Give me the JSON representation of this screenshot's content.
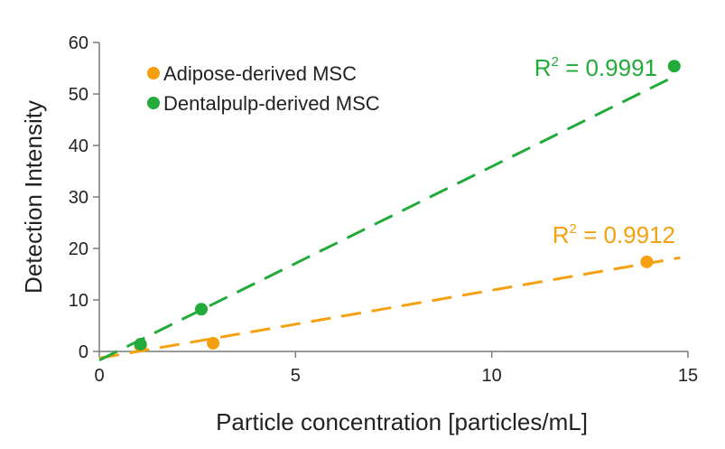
{
  "chart_data": {
    "type": "scatter",
    "title": "",
    "xlabel": "Particle concentration [particles/mL]",
    "ylabel": "Detection Intensity",
    "xlim": [
      0,
      15
    ],
    "ylim": [
      0,
      60
    ],
    "x_ticks": [
      0,
      5,
      10,
      15
    ],
    "y_ticks": [
      0,
      10,
      20,
      30,
      40,
      50,
      60
    ],
    "x_tick_labels": [
      "0",
      "5",
      "10",
      "15"
    ],
    "y_tick_labels": [
      "0",
      "10",
      "20",
      "30",
      "40",
      "50",
      "60"
    ],
    "grid": false,
    "legend_position": "top-left",
    "series": [
      {
        "name": "Adipose-derived MSC",
        "color": "#f5a00f",
        "points": [
          {
            "x": 1.05,
            "y": 1.0
          },
          {
            "x": 2.9,
            "y": 1.6
          },
          {
            "x": 13.95,
            "y": 17.4
          }
        ],
        "trendline": {
          "style": "dashed",
          "x0": 0,
          "y0": -1.3,
          "x1": 14.8,
          "y1": 18.2
        },
        "r2": {
          "prefix": "R",
          "sup": "2",
          "value": " = 0.9912"
        }
      },
      {
        "name": "Dentalpulp-derived MSC",
        "color": "#22aa3a",
        "points": [
          {
            "x": 1.05,
            "y": 1.4
          },
          {
            "x": 2.6,
            "y": 8.2
          },
          {
            "x": 14.65,
            "y": 55.4
          }
        ],
        "trendline": {
          "style": "dashed",
          "x0": 0,
          "y0": -1.7,
          "x1": 14.6,
          "y1": 53.2
        },
        "r2": {
          "prefix": "R",
          "sup": "2",
          "value": " = 0.9991"
        }
      }
    ]
  }
}
